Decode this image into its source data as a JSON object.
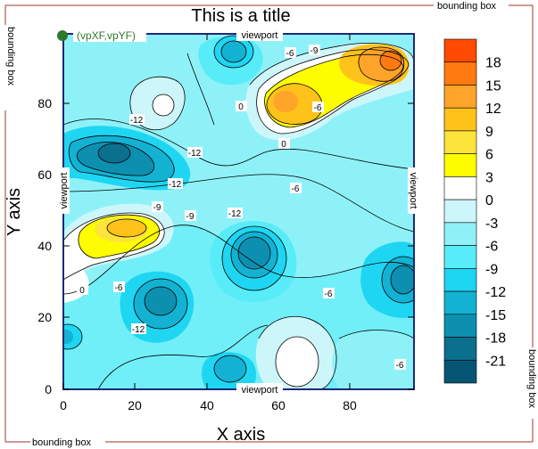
{
  "chart_data": {
    "type": "contour",
    "title": "This is a title",
    "xlabel": "X axis",
    "ylabel": "Y axis",
    "xlim": [
      0,
      98
    ],
    "ylim": [
      0,
      98
    ],
    "x_ticks": [
      0,
      20,
      40,
      60,
      80
    ],
    "y_ticks": [
      0,
      20,
      40,
      60,
      80
    ],
    "colorbar": {
      "levels": [
        18,
        15,
        12,
        9,
        6,
        3,
        0,
        -3,
        -6,
        -9,
        -12,
        -15,
        -18,
        -21
      ],
      "colors": [
        "#ff4a00",
        "#ff7a10",
        "#ffa42a",
        "#ffc21a",
        "#fde43a",
        "#fdfd00",
        "#ffffff",
        "#cdf6fb",
        "#8ff1f8",
        "#57ecf8",
        "#1ed6f2",
        "#13b2d2",
        "#0d90b0",
        "#0b6f8e",
        "#075575"
      ]
    },
    "contour_labels": [
      "-6",
      "-9",
      "0",
      "-6",
      "-12",
      "-12",
      "-12",
      "-9",
      "0",
      "-9",
      "-12",
      "0",
      "-6",
      "-12",
      "-6",
      "-6",
      "-6"
    ],
    "annotations": {
      "bounding_box": "bounding box",
      "viewport": "viewport",
      "corner_point": "(vpXF,vpYF)"
    }
  }
}
